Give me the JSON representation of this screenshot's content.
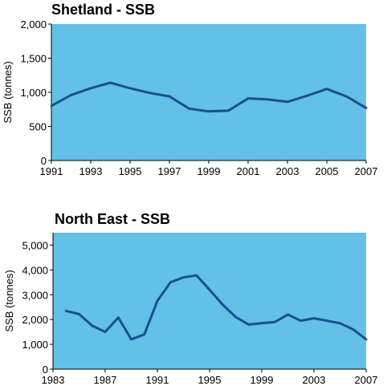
{
  "colors": {
    "plot_bg": "#63c0e6",
    "line": "#1b4f8f",
    "axis": "#000000"
  },
  "chart_data": [
    {
      "type": "line",
      "title": "Shetland - SSB",
      "xlabel": "",
      "ylabel": "SSB (tonnes)",
      "xlim": [
        1991,
        2007
      ],
      "ylim": [
        0,
        2000
      ],
      "xticks": [
        1991,
        1993,
        1995,
        1997,
        1999,
        2001,
        2003,
        2005,
        2007
      ],
      "xtick_labels": [
        "1991",
        "1993",
        "1995",
        "1997",
        "1999",
        "2001",
        "2003",
        "2005",
        "2007"
      ],
      "yticks": [
        0,
        500,
        1000,
        1500,
        2000
      ],
      "ytick_labels": [
        "0",
        "500",
        "1,000",
        "1,500",
        "2,000"
      ],
      "grid": false,
      "series": [
        {
          "x": [
            1991,
            1992,
            1993,
            1994,
            1995,
            1996,
            1997,
            1998,
            1999,
            2000,
            2001,
            2002,
            2003,
            2004,
            2005,
            2006,
            2007
          ],
          "y": [
            800,
            960,
            1060,
            1140,
            1060,
            990,
            940,
            760,
            720,
            730,
            910,
            895,
            860,
            950,
            1050,
            940,
            770
          ]
        }
      ]
    },
    {
      "type": "line",
      "title": "North East - SSB",
      "xlabel": "",
      "ylabel": "SSB (tonnes)",
      "xlim": [
        1983,
        2007
      ],
      "ylim": [
        0,
        5500
      ],
      "xticks": [
        1983,
        1987,
        1991,
        1995,
        1999,
        2003,
        2007
      ],
      "xtick_labels": [
        "1983",
        "1987",
        "1991",
        "1995",
        "1999",
        "2003",
        "2007"
      ],
      "yticks": [
        0,
        1000,
        2000,
        3000,
        4000,
        5000
      ],
      "ytick_labels": [
        "0",
        "1,000",
        "2,000",
        "3,000",
        "4,000",
        "5,000"
      ],
      "grid": false,
      "series": [
        {
          "x": [
            1984,
            1985,
            1986,
            1987,
            1988,
            1989,
            1990,
            1991,
            1992,
            1993,
            1994,
            1995,
            1996,
            1997,
            1998,
            1999,
            2000,
            2001,
            2002,
            2003,
            2004,
            2005,
            2006,
            2007
          ],
          "y": [
            2350,
            2220,
            1750,
            1500,
            2080,
            1200,
            1400,
            2750,
            3500,
            3700,
            3780,
            3200,
            2600,
            2100,
            1800,
            1850,
            1900,
            2200,
            1950,
            2050,
            1950,
            1850,
            1600,
            1200
          ]
        }
      ]
    }
  ]
}
